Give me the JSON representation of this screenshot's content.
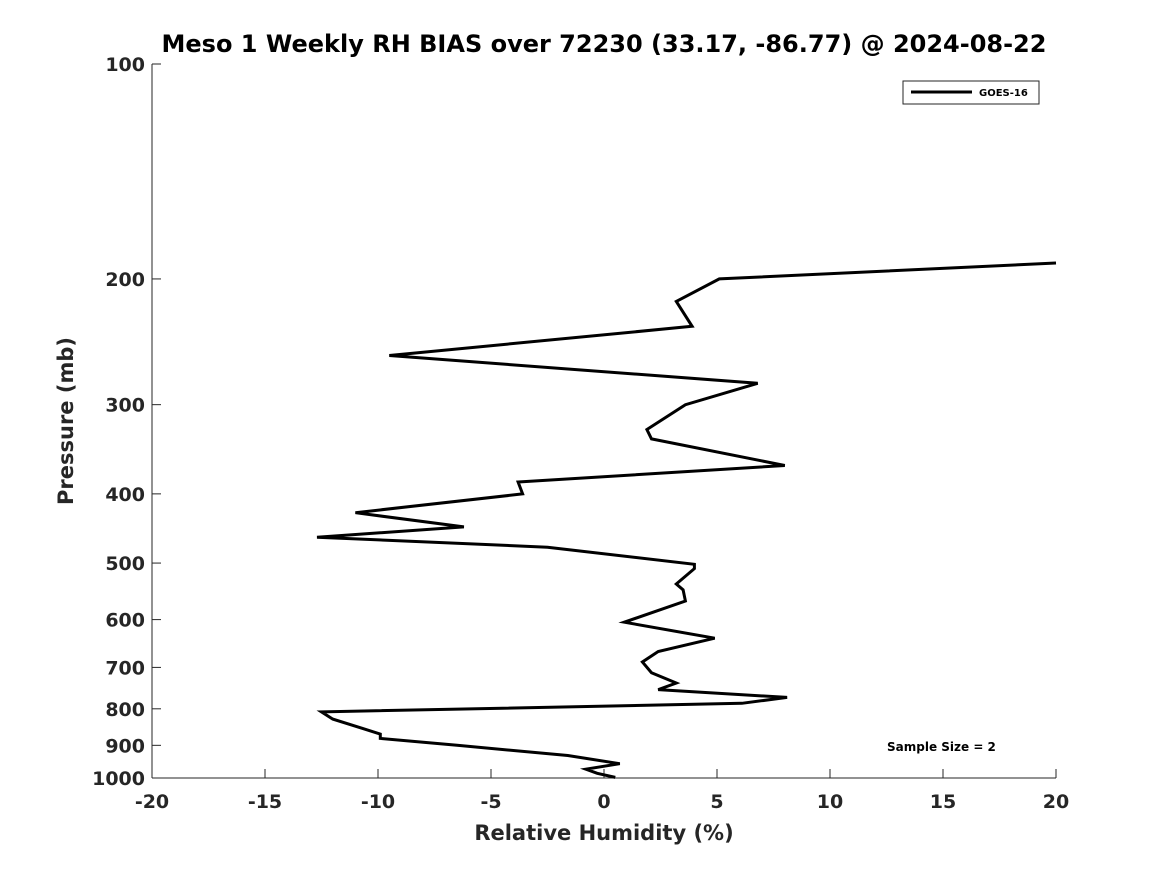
{
  "chart_data": {
    "type": "line",
    "title": "Meso 1 Weekly RH BIAS over 72230 (33.17, -86.77) @ 2024-08-22",
    "xlabel": "Relative Humidity (%)",
    "ylabel": "Pressure (mb)",
    "xlim": [
      -20,
      20
    ],
    "ylim": [
      1000,
      100
    ],
    "y_scale": "log",
    "x_ticks": [
      -20,
      -15,
      -10,
      -5,
      0,
      5,
      10,
      15,
      20
    ],
    "x_tick_labels": [
      "-20",
      "-15",
      "-10",
      "-5",
      "0",
      "5",
      "10",
      "15",
      "20"
    ],
    "y_ticks": [
      100,
      200,
      300,
      400,
      500,
      600,
      700,
      800,
      900,
      1000
    ],
    "y_tick_labels": [
      "100",
      "200",
      "300",
      "400",
      "500",
      "600",
      "700",
      "800",
      "900",
      "1000"
    ],
    "grid": false,
    "legend_position": "top-right",
    "annotation": "Sample Size = 2",
    "series": [
      {
        "name": "GOES-16",
        "color": "#000000",
        "points": [
          [
            20.0,
            190
          ],
          [
            5.1,
            200
          ],
          [
            3.2,
            215
          ],
          [
            3.9,
            233
          ],
          [
            -9.5,
            256
          ],
          [
            6.8,
            280
          ],
          [
            3.6,
            300
          ],
          [
            1.9,
            325
          ],
          [
            2.1,
            335
          ],
          [
            8.0,
            365
          ],
          [
            -3.8,
            385
          ],
          [
            -3.6,
            400
          ],
          [
            -11.0,
            425
          ],
          [
            -6.2,
            445
          ],
          [
            -12.7,
            460
          ],
          [
            -2.5,
            475
          ],
          [
            4.0,
            502
          ],
          [
            4.0,
            509
          ],
          [
            3.2,
            535
          ],
          [
            3.5,
            545
          ],
          [
            3.6,
            565
          ],
          [
            0.9,
            605
          ],
          [
            4.9,
            637
          ],
          [
            2.4,
            665
          ],
          [
            1.7,
            688
          ],
          [
            2.1,
            712
          ],
          [
            3.2,
            736
          ],
          [
            2.4,
            752
          ],
          [
            8.1,
            771
          ],
          [
            6.1,
            786
          ],
          [
            -12.5,
            808
          ],
          [
            -12.0,
            827
          ],
          [
            -10.7,
            852
          ],
          [
            -9.9,
            868
          ],
          [
            -9.9,
            880
          ],
          [
            -6.5,
            900
          ],
          [
            -1.6,
            930
          ],
          [
            0.7,
            955
          ],
          [
            -0.8,
            972
          ],
          [
            -0.3,
            985
          ],
          [
            0.5,
            998
          ]
        ]
      }
    ]
  }
}
